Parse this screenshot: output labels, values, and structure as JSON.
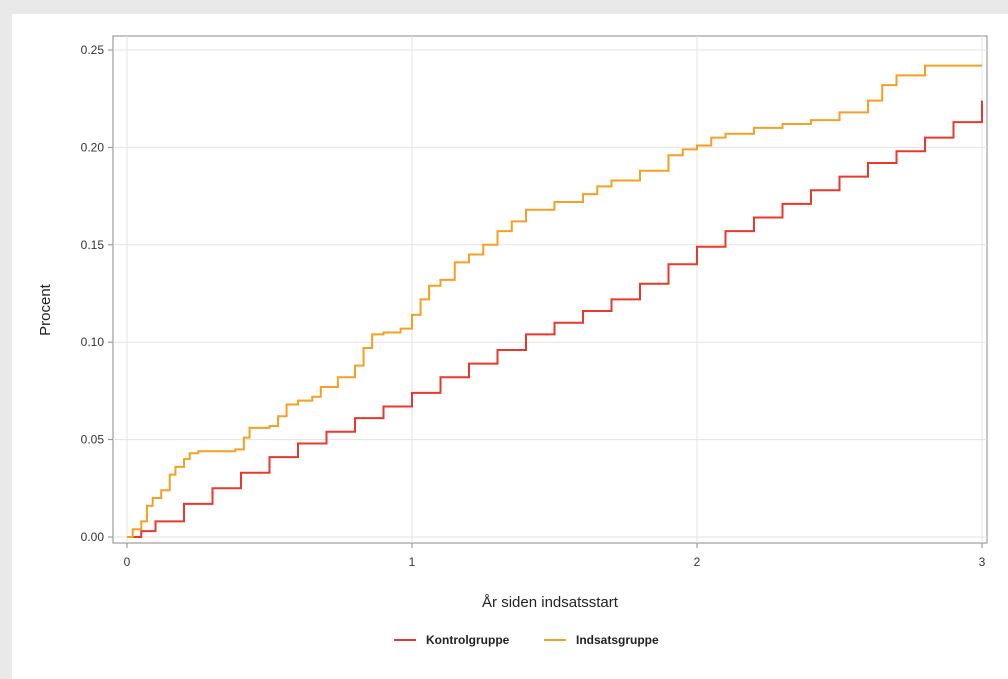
{
  "chart_data": {
    "type": "line",
    "title": "",
    "xlabel": "År siden indsatsstart",
    "ylabel": "Procent",
    "xlim": [
      0,
      3
    ],
    "ylim": [
      0,
      0.25
    ],
    "xticks": [
      0,
      1,
      2,
      3
    ],
    "yticks": [
      0.0,
      0.05,
      0.1,
      0.15,
      0.2,
      0.25
    ],
    "ytick_labels": [
      "0.00",
      "0.05",
      "0.10",
      "0.15",
      "0.20",
      "0.25"
    ],
    "xtick_labels": [
      "0",
      "1",
      "2",
      "3"
    ],
    "grid": true,
    "legend_position": "bottom",
    "step": true,
    "series": [
      {
        "name": "Kontrolgruppe",
        "color": "#e8392a",
        "x": [
          0,
          0.05,
          0.1,
          0.2,
          0.3,
          0.4,
          0.5,
          0.6,
          0.7,
          0.8,
          0.9,
          1.0,
          1.1,
          1.2,
          1.3,
          1.4,
          1.5,
          1.6,
          1.7,
          1.8,
          1.9,
          2.0,
          2.1,
          2.2,
          2.3,
          2.4,
          2.5,
          2.6,
          2.7,
          2.8,
          2.9,
          3.0
        ],
        "y": [
          0,
          0.003,
          0.008,
          0.017,
          0.025,
          0.033,
          0.041,
          0.048,
          0.054,
          0.061,
          0.067,
          0.074,
          0.082,
          0.089,
          0.096,
          0.104,
          0.11,
          0.116,
          0.122,
          0.13,
          0.14,
          0.149,
          0.157,
          0.164,
          0.171,
          0.178,
          0.185,
          0.192,
          0.198,
          0.205,
          0.213,
          0.224
        ]
      },
      {
        "name": "Indsatsgruppe",
        "color": "#f5a023",
        "x": [
          0,
          0.02,
          0.05,
          0.07,
          0.09,
          0.12,
          0.15,
          0.17,
          0.2,
          0.22,
          0.25,
          0.3,
          0.38,
          0.41,
          0.43,
          0.5,
          0.53,
          0.56,
          0.6,
          0.65,
          0.68,
          0.74,
          0.8,
          0.83,
          0.86,
          0.9,
          0.96,
          1.0,
          1.03,
          1.06,
          1.1,
          1.15,
          1.2,
          1.25,
          1.3,
          1.35,
          1.4,
          1.5,
          1.6,
          1.65,
          1.7,
          1.8,
          1.9,
          1.95,
          2.0,
          2.05,
          2.1,
          2.2,
          2.3,
          2.4,
          2.5,
          2.6,
          2.65,
          2.7,
          2.8,
          3.0
        ],
        "y": [
          0,
          0.004,
          0.008,
          0.016,
          0.02,
          0.024,
          0.032,
          0.036,
          0.04,
          0.043,
          0.044,
          0.044,
          0.045,
          0.051,
          0.056,
          0.057,
          0.062,
          0.068,
          0.07,
          0.072,
          0.077,
          0.082,
          0.088,
          0.097,
          0.104,
          0.105,
          0.107,
          0.114,
          0.122,
          0.129,
          0.132,
          0.141,
          0.145,
          0.15,
          0.157,
          0.162,
          0.168,
          0.172,
          0.176,
          0.18,
          0.183,
          0.188,
          0.196,
          0.199,
          0.201,
          0.205,
          0.207,
          0.21,
          0.212,
          0.214,
          0.218,
          0.224,
          0.232,
          0.237,
          0.242,
          0.242
        ]
      }
    ]
  }
}
